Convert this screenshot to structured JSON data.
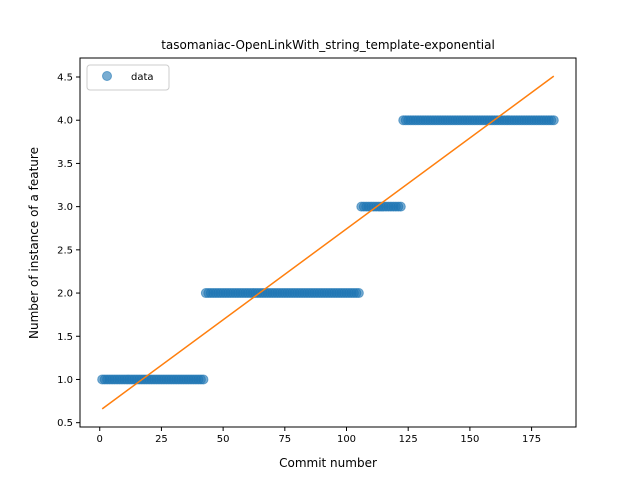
{
  "chart_data": {
    "type": "scatter",
    "title": "tasomaniac-OpenLinkWith_string_template-exponential",
    "xlabel": "Commit number",
    "ylabel": "Number of instance of a feature",
    "xlim": [
      -8,
      193
    ],
    "ylim": [
      0.45,
      4.72
    ],
    "xticks": [
      0,
      25,
      50,
      75,
      100,
      125,
      150,
      175
    ],
    "yticks": [
      0.5,
      1.0,
      1.5,
      2.0,
      2.5,
      3.0,
      3.5,
      4.0,
      4.5
    ],
    "ytick_labels": [
      "0.5",
      "1.0",
      "1.5",
      "2.0",
      "2.5",
      "3.0",
      "3.5",
      "4.0",
      "4.5"
    ],
    "grid": false,
    "legend": {
      "position": "top-left",
      "entries": [
        "data"
      ]
    },
    "colors": {
      "data": "#1f77b4",
      "fit": "#ff7f0e"
    },
    "series": [
      {
        "name": "data",
        "kind": "points",
        "segments": [
          {
            "x_start": 1,
            "x_end": 42,
            "y": 1.0
          },
          {
            "x_start": 43,
            "x_end": 105,
            "y": 2.0
          },
          {
            "x_start": 106,
            "x_end": 122,
            "y": 3.0
          },
          {
            "x_start": 123,
            "x_end": 184,
            "y": 4.0
          }
        ]
      },
      {
        "kind": "line",
        "x": [
          1,
          184
        ],
        "y": [
          0.66,
          4.51
        ]
      }
    ]
  }
}
